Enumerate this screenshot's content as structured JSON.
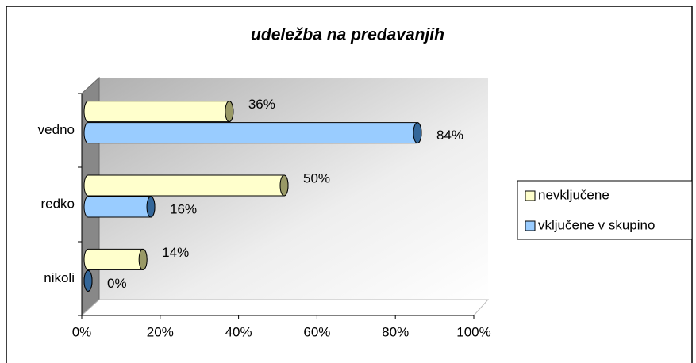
{
  "chart_data": {
    "type": "bar",
    "orientation": "horizontal",
    "title": "udeležba na predavanjih",
    "categories": [
      "vedno",
      "redko",
      "nikoli"
    ],
    "series": [
      {
        "name": "nevključene",
        "color": "#ffffcc",
        "values": [
          36,
          50,
          14
        ],
        "value_labels": [
          "36%",
          "50%",
          "14%"
        ]
      },
      {
        "name": "vključene v skupino",
        "color": "#99ccff",
        "values": [
          84,
          16,
          0
        ],
        "value_labels": [
          "84%",
          "16%",
          "0%"
        ]
      }
    ],
    "xlim": [
      0,
      100
    ],
    "xticks": [
      {
        "value": 0,
        "label": "0%"
      },
      {
        "value": 20,
        "label": "20%"
      },
      {
        "value": 40,
        "label": "40%"
      },
      {
        "value": 60,
        "label": "60%"
      },
      {
        "value": 80,
        "label": "80%"
      },
      {
        "value": 100,
        "label": "100%"
      }
    ],
    "legend": "right"
  }
}
